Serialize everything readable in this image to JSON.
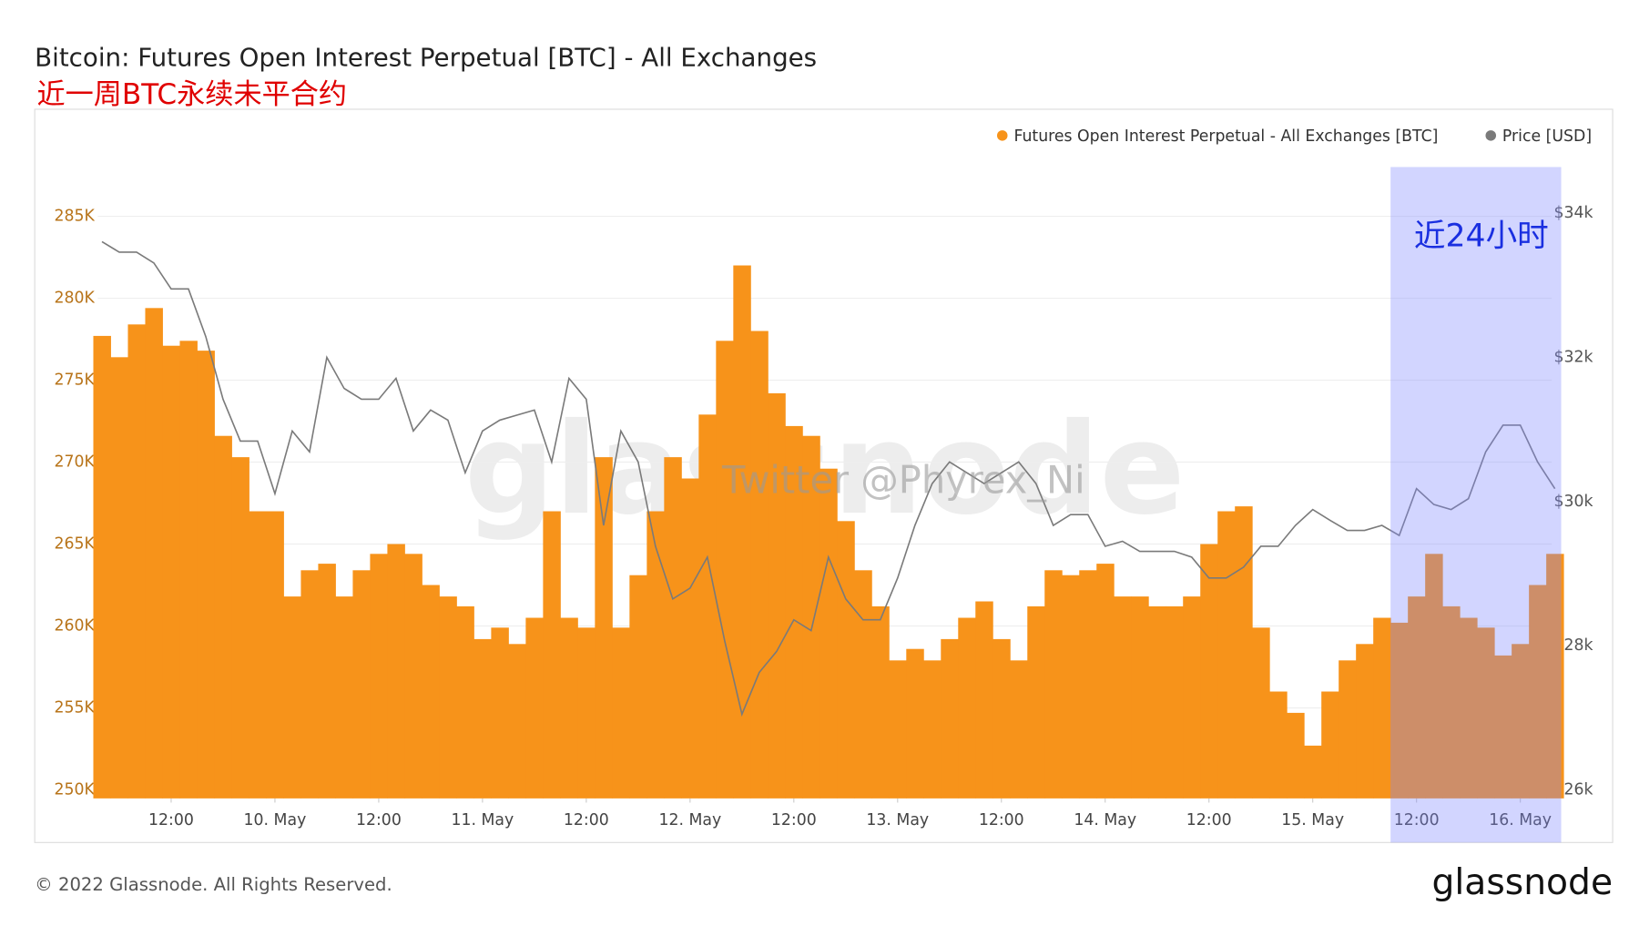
{
  "chart_data": {
    "type": "bar-line",
    "title": "Bitcoin: Futures Open Interest Perpetual [BTC] - All Exchanges",
    "subtitle": "近一周BTC永续未平合约",
    "watermark": "glassnode",
    "overlay_text": "Twitter @Phyrex_Ni",
    "highlight": {
      "label": "近24小时",
      "from": "15. May 10:00",
      "color": "#7d87ff"
    },
    "x": [
      "9. May 04:00",
      "9. May 06:00",
      "9. May 08:00",
      "9. May 10:00",
      "9. May 12:00",
      "9. May 14:00",
      "9. May 16:00",
      "9. May 18:00",
      "9. May 20:00",
      "9. May 22:00",
      "10. May 00:00",
      "10. May 02:00",
      "10. May 04:00",
      "10. May 06:00",
      "10. May 08:00",
      "10. May 10:00",
      "10. May 12:00",
      "10. May 14:00",
      "10. May 16:00",
      "10. May 18:00",
      "10. May 20:00",
      "10. May 22:00",
      "11. May 00:00",
      "11. May 02:00",
      "11. May 04:00",
      "11. May 06:00",
      "11. May 08:00",
      "11. May 10:00",
      "11. May 12:00",
      "11. May 14:00",
      "11. May 16:00",
      "11. May 18:00",
      "11. May 20:00",
      "11. May 22:00",
      "12. May 00:00",
      "12. May 02:00",
      "12. May 04:00",
      "12. May 06:00",
      "12. May 08:00",
      "12. May 10:00",
      "12. May 12:00",
      "12. May 14:00",
      "12. May 16:00",
      "12. May 18:00",
      "12. May 20:00",
      "12. May 22:00",
      "13. May 00:00",
      "13. May 02:00",
      "13. May 04:00",
      "13. May 06:00",
      "13. May 08:00",
      "13. May 10:00",
      "13. May 12:00",
      "13. May 14:00",
      "13. May 16:00",
      "13. May 18:00",
      "13. May 20:00",
      "13. May 22:00",
      "14. May 00:00",
      "14. May 02:00",
      "14. May 04:00",
      "14. May 06:00",
      "14. May 08:00",
      "14. May 10:00",
      "14. May 12:00",
      "14. May 14:00",
      "14. May 16:00",
      "14. May 18:00",
      "14. May 20:00",
      "14. May 22:00",
      "15. May 00:00",
      "15. May 02:00",
      "15. May 04:00",
      "15. May 06:00",
      "15. May 08:00",
      "15. May 10:00",
      "15. May 12:00",
      "15. May 14:00",
      "15. May 16:00",
      "15. May 18:00",
      "15. May 20:00",
      "15. May 22:00",
      "16. May 00:00",
      "16. May 02:00",
      "16. May 04:00"
    ],
    "series": [
      {
        "name": "Futures Open Interest Perpetual - All Exchanges [BTC]",
        "color": "#f7931a",
        "type": "bar",
        "values": [
          277700,
          276400,
          278400,
          279400,
          277100,
          277400,
          276800,
          271600,
          270300,
          267000,
          267000,
          261800,
          263400,
          263800,
          261800,
          263400,
          264400,
          265000,
          264400,
          262500,
          261800,
          261200,
          259200,
          259900,
          258900,
          260500,
          267000,
          260500,
          259900,
          270300,
          259900,
          263100,
          267000,
          270300,
          269000,
          272900,
          277400,
          282000,
          278000,
          274200,
          272200,
          271600,
          269600,
          266400,
          263400,
          261200,
          257900,
          258600,
          257900,
          259200,
          260500,
          261500,
          259200,
          257900,
          261200,
          263400,
          263100,
          263400,
          263800,
          261800,
          261800,
          261200,
          261200,
          261800,
          265000,
          267000,
          267300,
          259900,
          256000,
          254700,
          252700,
          256000,
          257900,
          258900,
          260500,
          260200,
          261800,
          264400,
          261200,
          260500,
          259900,
          258200,
          258900,
          262500,
          264400
        ]
      },
      {
        "name": "Price [USD]",
        "color": "#7a7a7a",
        "type": "line",
        "axis": "y2",
        "values": [
          33606,
          33460,
          33460,
          33310,
          32950,
          32950,
          32290,
          31420,
          30840,
          30840,
          30110,
          30980,
          30690,
          32000,
          31570,
          31420,
          31420,
          31710,
          30980,
          31270,
          31130,
          30400,
          30980,
          31130,
          31200,
          31270,
          30550,
          31710,
          31420,
          29670,
          30980,
          30550,
          29380,
          28650,
          28800,
          29230,
          28070,
          27050,
          27630,
          27920,
          28360,
          28210,
          29230,
          28650,
          28360,
          28360,
          28940,
          29670,
          30250,
          30550,
          30400,
          30250,
          30400,
          30550,
          30250,
          29670,
          29820,
          29820,
          29380,
          29450,
          29310,
          29310,
          29310,
          29230,
          28940,
          28940,
          29090,
          29380,
          29380,
          29670,
          29890,
          29740,
          29600,
          29600,
          29670,
          29530,
          30180,
          29960,
          29890,
          30040,
          30690,
          31060,
          31060,
          30550,
          30180
        ]
      }
    ],
    "xticks": [
      {
        "value": "9. May 12:00",
        "label": "12:00"
      },
      {
        "value": "10. May 00:00",
        "label": "10. May"
      },
      {
        "value": "10. May 12:00",
        "label": "12:00"
      },
      {
        "value": "11. May 00:00",
        "label": "11. May"
      },
      {
        "value": "11. May 12:00",
        "label": "12:00"
      },
      {
        "value": "12. May 00:00",
        "label": "12. May"
      },
      {
        "value": "12. May 12:00",
        "label": "12:00"
      },
      {
        "value": "13. May 00:00",
        "label": "13. May"
      },
      {
        "value": "13. May 12:00",
        "label": "12:00"
      },
      {
        "value": "14. May 00:00",
        "label": "14. May"
      },
      {
        "value": "14. May 12:00",
        "label": "12:00"
      },
      {
        "value": "15. May 00:00",
        "label": "15. May"
      },
      {
        "value": "15. May 12:00",
        "label": "12:00"
      },
      {
        "value": "16. May 00:00",
        "label": "16. May"
      }
    ],
    "ylim": [
      249480,
      289030
    ],
    "yticks": [
      {
        "value": 250000,
        "label": "250K"
      },
      {
        "value": 255000,
        "label": "255K"
      },
      {
        "value": 260000,
        "label": "260K"
      },
      {
        "value": 265000,
        "label": "265K"
      },
      {
        "value": 270000,
        "label": "270K"
      },
      {
        "value": 275000,
        "label": "275K"
      },
      {
        "value": 280000,
        "label": "280K"
      },
      {
        "value": 285000,
        "label": "285K"
      }
    ],
    "y2lim": [
      25883,
      34874
    ],
    "y2ticks": [
      {
        "value": 26000,
        "label": "$26k"
      },
      {
        "value": 28000,
        "label": "$28k"
      },
      {
        "value": 30000,
        "label": "$30k"
      },
      {
        "value": 32000,
        "label": "$32k"
      },
      {
        "value": 34000,
        "label": "$34k"
      }
    ],
    "grid": true,
    "legend": "top-right"
  },
  "footer": "© 2022 Glassnode. All Rights Reserved.",
  "logo": "glassnode"
}
